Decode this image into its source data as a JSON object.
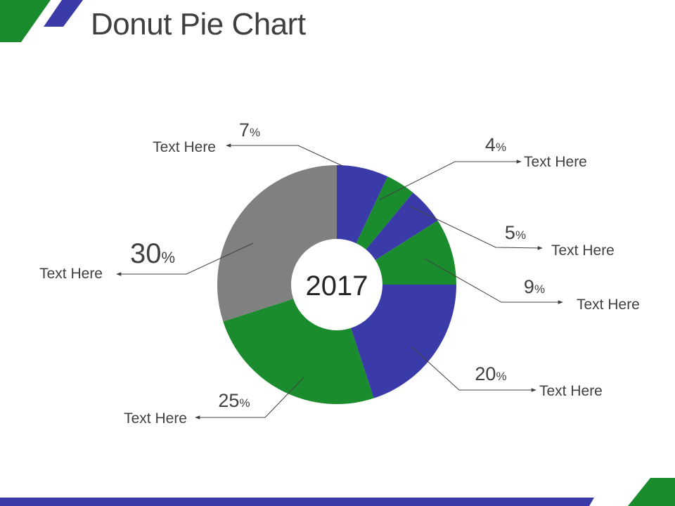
{
  "title": "Donut Pie Chart",
  "colors": {
    "blue": "#3a3aa8",
    "green": "#1a8c2e",
    "gray": "#808080",
    "text": "#404040"
  },
  "chart_data": {
    "type": "pie",
    "variant": "donut",
    "center_label": "2017",
    "slices": [
      {
        "value": 7,
        "label": "Text Here",
        "color": "#3a3aa8"
      },
      {
        "value": 4,
        "label": "Text Here",
        "color": "#1a8c2e"
      },
      {
        "value": 5,
        "label": "Text Here",
        "color": "#3a3aa8"
      },
      {
        "value": 9,
        "label": "Text Here",
        "color": "#1a8c2e"
      },
      {
        "value": 20,
        "label": "Text Here",
        "color": "#3a3aa8"
      },
      {
        "value": 25,
        "label": "Text Here",
        "color": "#1a8c2e"
      },
      {
        "value": 30,
        "label": "Text Here",
        "color": "#808080"
      }
    ],
    "unit": "%"
  }
}
